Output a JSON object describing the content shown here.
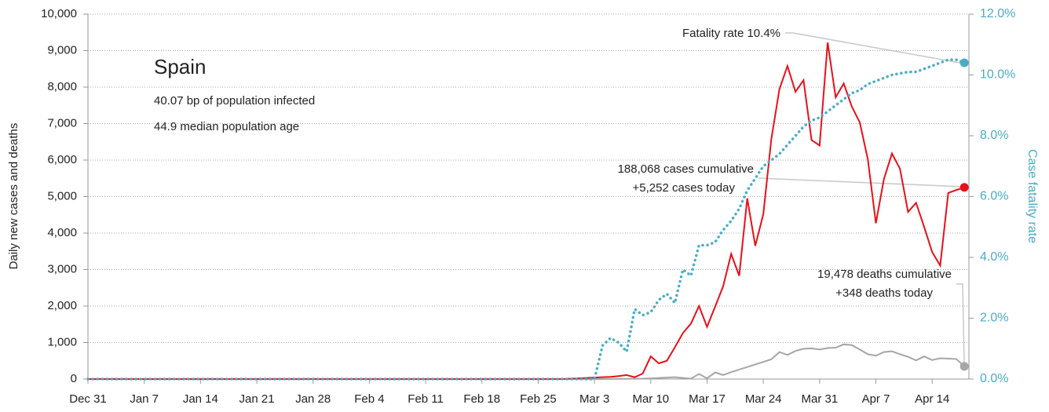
{
  "chart_data": {
    "type": "line",
    "annotations": {
      "country": "Spain",
      "infected": "40.07 bp of population infected",
      "age": "44.9 median population age",
      "fatality": "Fatality rate 10.4%",
      "cases_cum": "188,068 cases cumulative",
      "cases_today": "+5,252 cases today",
      "deaths_cum": "19,478 deaths cumulative",
      "deaths_today": "+348 deaths today"
    },
    "ylabel": "Daily new cases and deaths",
    "y2label": "Case fatality rate",
    "categories": [
      "Dec 31",
      null,
      null,
      null,
      null,
      null,
      null,
      "Jan 7",
      null,
      null,
      null,
      null,
      null,
      null,
      "Jan 14",
      null,
      null,
      null,
      null,
      null,
      null,
      "Jan 21",
      null,
      null,
      null,
      null,
      null,
      null,
      "Jan 28",
      null,
      null,
      null,
      null,
      null,
      null,
      "Feb 4",
      null,
      null,
      null,
      null,
      null,
      null,
      "Feb 11",
      null,
      null,
      null,
      null,
      null,
      null,
      "Feb 18",
      null,
      null,
      null,
      null,
      null,
      null,
      "Feb 25",
      null,
      null,
      null,
      null,
      null,
      null,
      "Mar 3",
      null,
      null,
      null,
      null,
      null,
      null,
      "Mar 10",
      null,
      null,
      null,
      null,
      null,
      null,
      "Mar 17",
      null,
      null,
      null,
      null,
      null,
      null,
      "Mar 24",
      null,
      null,
      null,
      null,
      null,
      null,
      "Mar 31",
      null,
      null,
      null,
      null,
      null,
      null,
      "Apr 7",
      null,
      null,
      null,
      null,
      null,
      null,
      "Apr 14",
      null,
      null,
      null,
      null
    ],
    "series": [
      {
        "name": "Cases",
        "color": "#e8101a",
        "style": "solid",
        "values": [
          0,
          0,
          0,
          0,
          0,
          0,
          0,
          0,
          0,
          0,
          0,
          0,
          0,
          0,
          0,
          0,
          0,
          0,
          0,
          0,
          0,
          0,
          0,
          0,
          0,
          0,
          0,
          0,
          0,
          0,
          0,
          0,
          0,
          0,
          0,
          0,
          0,
          0,
          0,
          0,
          0,
          0,
          0,
          0,
          0,
          0,
          0,
          0,
          0,
          0,
          0,
          0,
          0,
          0,
          0,
          0,
          0,
          0,
          0,
          0,
          10,
          20,
          30,
          40,
          50,
          60,
          80,
          110,
          50,
          150,
          620,
          430,
          500,
          870,
          1260,
          1520,
          2000,
          1430,
          1980,
          2540,
          3430,
          2830,
          4950,
          3650,
          4520,
          6580,
          7940,
          8580,
          7870,
          8190,
          6550,
          6400,
          9220,
          7720,
          8100,
          7470,
          7030,
          6020,
          4270,
          5480,
          6180,
          5760,
          4580,
          4830,
          4170,
          3480,
          3110,
          5100,
          5180,
          5252
        ]
      },
      {
        "name": "Deaths",
        "color": "#a6a6a6",
        "style": "solid",
        "values": [
          0,
          0,
          0,
          0,
          0,
          0,
          0,
          0,
          0,
          0,
          0,
          0,
          0,
          0,
          0,
          0,
          0,
          0,
          0,
          0,
          0,
          0,
          0,
          0,
          0,
          0,
          0,
          0,
          0,
          0,
          0,
          0,
          0,
          0,
          0,
          0,
          0,
          0,
          0,
          0,
          0,
          0,
          0,
          0,
          0,
          0,
          0,
          0,
          0,
          0,
          0,
          0,
          0,
          0,
          0,
          0,
          0,
          0,
          0,
          0,
          0,
          0,
          1,
          0,
          1,
          2,
          2,
          5,
          7,
          10,
          20,
          30,
          40,
          50,
          30,
          10,
          140,
          20,
          180,
          110,
          190,
          260,
          330,
          400,
          470,
          540,
          740,
          660,
          770,
          830,
          840,
          810,
          850,
          860,
          950,
          930,
          810,
          680,
          640,
          740,
          760,
          680,
          610,
          510,
          620,
          520,
          570,
          560,
          550,
          348
        ]
      },
      {
        "name": "Case fatality rate",
        "color": "#4bacc6",
        "style": "dotted",
        "axis": "y2",
        "values": [
          0,
          0,
          0,
          0,
          0,
          0,
          0,
          0,
          0,
          0,
          0,
          0,
          0,
          0,
          0,
          0,
          0,
          0,
          0,
          0,
          0,
          0,
          0,
          0,
          0,
          0,
          0,
          0,
          0,
          0,
          0,
          0,
          0,
          0,
          0,
          0,
          0,
          0,
          0,
          0,
          0,
          0,
          0,
          0,
          0,
          0,
          0,
          0,
          0,
          0,
          0,
          0,
          0,
          0,
          0,
          0,
          0,
          0,
          0,
          0,
          0,
          0,
          0,
          0,
          1.1,
          1.35,
          1.2,
          0.9,
          2.3,
          2.1,
          2.2,
          2.6,
          2.8,
          2.5,
          3.6,
          3.4,
          4.4,
          4.4,
          4.5,
          4.9,
          5.2,
          5.6,
          6.2,
          6.6,
          7.0,
          7.2,
          7.4,
          7.7,
          8.0,
          8.3,
          8.5,
          8.6,
          8.8,
          9.0,
          9.2,
          9.4,
          9.5,
          9.7,
          9.8,
          9.9,
          10.0,
          10.05,
          10.1,
          10.1,
          10.2,
          10.3,
          10.4,
          10.5,
          10.5,
          10.4
        ]
      }
    ],
    "ylim": [
      0,
      10000
    ],
    "yticks": [
      0,
      {
        "value": 1000,
        "label": "1,000"
      },
      {
        "value": 2000,
        "label": "2,000"
      },
      {
        "value": 3000,
        "label": "3,000"
      },
      {
        "value": 4000,
        "label": "4,000"
      },
      {
        "value": 5000,
        "label": "5,000"
      },
      {
        "value": 6000,
        "label": "6,000"
      },
      {
        "value": 7000,
        "label": "7,000"
      },
      {
        "value": 8000,
        "label": "8,000"
      },
      {
        "value": 9000,
        "label": "9,000"
      },
      {
        "value": 10000,
        "label": "10,000"
      }
    ],
    "y2lim": [
      0,
      12
    ],
    "y2ticks": [
      {
        "value": 0,
        "label": "0.0%"
      },
      {
        "value": 2,
        "label": "2.0%"
      },
      {
        "value": 4,
        "label": "4.0%"
      },
      {
        "value": 6,
        "label": "6.0%"
      },
      {
        "value": 8,
        "label": "8.0%"
      },
      {
        "value": 10,
        "label": "10.0%"
      },
      {
        "value": 12,
        "label": "12.0%"
      }
    ],
    "grid": true
  }
}
